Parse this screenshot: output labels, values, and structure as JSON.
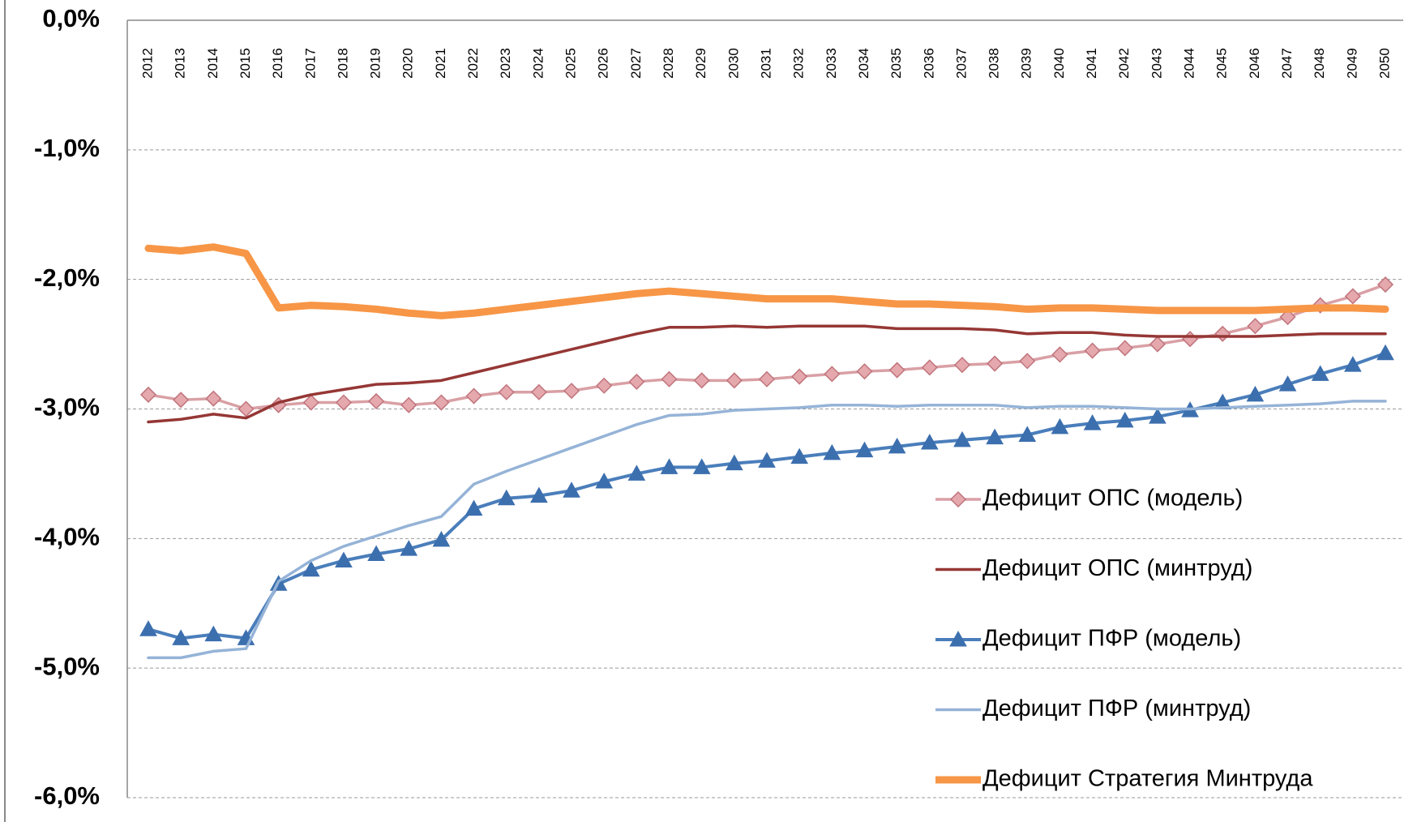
{
  "chart_data": {
    "type": "line",
    "categories": [
      "2012",
      "2013",
      "2014",
      "2015",
      "2016",
      "2017",
      "2018",
      "2019",
      "2020",
      "2021",
      "2022",
      "2023",
      "2024",
      "2025",
      "2026",
      "2027",
      "2028",
      "2029",
      "2030",
      "2031",
      "2032",
      "2033",
      "2034",
      "2035",
      "2036",
      "2037",
      "2038",
      "2039",
      "2040",
      "2041",
      "2042",
      "2043",
      "2044",
      "2045",
      "2046",
      "2047",
      "2048",
      "2049",
      "2050"
    ],
    "ylim": [
      -6,
      0
    ],
    "yticks": [
      {
        "value": 0,
        "label": "0,0%"
      },
      {
        "value": -1,
        "label": "-1,0%"
      },
      {
        "value": -2,
        "label": "-2,0%"
      },
      {
        "value": -3,
        "label": "-3,0%"
      },
      {
        "value": -4,
        "label": "-4,0%"
      },
      {
        "value": -5,
        "label": "-5,0%"
      },
      {
        "value": -6,
        "label": "-6,0%"
      }
    ],
    "grid": true,
    "legend_position": "lower right",
    "series": [
      {
        "name": "Дефицит ОПС (модель)",
        "color": "#d9a0a5",
        "marker": "diamond",
        "marker_color": "#c0747c",
        "values": [
          -2.89,
          -2.93,
          -2.92,
          -3.0,
          -2.97,
          -2.95,
          -2.95,
          -2.94,
          -2.97,
          -2.95,
          -2.9,
          -2.87,
          -2.87,
          -2.86,
          -2.82,
          -2.79,
          -2.77,
          -2.78,
          -2.78,
          -2.77,
          -2.75,
          -2.73,
          -2.71,
          -2.7,
          -2.68,
          -2.66,
          -2.65,
          -2.63,
          -2.58,
          -2.55,
          -2.53,
          -2.5,
          -2.46,
          -2.42,
          -2.36,
          -2.29,
          -2.2,
          -2.13,
          -2.04
        ]
      },
      {
        "name": "Дефицит ОПС (минтруд)",
        "color": "#953735",
        "marker": "none",
        "values": [
          -3.1,
          -3.08,
          -3.04,
          -3.07,
          -2.95,
          -2.89,
          -2.85,
          -2.81,
          -2.8,
          -2.78,
          -2.72,
          -2.66,
          -2.6,
          -2.54,
          -2.48,
          -2.42,
          -2.37,
          -2.37,
          -2.36,
          -2.37,
          -2.36,
          -2.36,
          -2.36,
          -2.38,
          -2.38,
          -2.38,
          -2.39,
          -2.42,
          -2.41,
          -2.41,
          -2.43,
          -2.44,
          -2.44,
          -2.44,
          -2.44,
          -2.43,
          -2.42,
          -2.42,
          -2.42
        ]
      },
      {
        "name": "Дефицит ПФР (модель)",
        "color": "#4a7ebb",
        "marker": "triangle",
        "marker_color": "#3c6fae",
        "values": [
          -4.7,
          -4.77,
          -4.74,
          -4.77,
          -4.35,
          -4.24,
          -4.17,
          -4.12,
          -4.08,
          -4.01,
          -3.77,
          -3.69,
          -3.67,
          -3.63,
          -3.56,
          -3.5,
          -3.45,
          -3.45,
          -3.42,
          -3.4,
          -3.37,
          -3.34,
          -3.32,
          -3.29,
          -3.26,
          -3.24,
          -3.22,
          -3.2,
          -3.14,
          -3.11,
          -3.09,
          -3.06,
          -3.01,
          -2.95,
          -2.89,
          -2.81,
          -2.73,
          -2.66,
          -2.57
        ]
      },
      {
        "name": "Дефицит ПФР (минтруд)",
        "color": "#95b3d7",
        "marker": "none",
        "values": [
          -4.92,
          -4.92,
          -4.87,
          -4.85,
          -4.33,
          -4.17,
          -4.06,
          -3.98,
          -3.9,
          -3.83,
          -3.58,
          -3.48,
          -3.39,
          -3.3,
          -3.21,
          -3.12,
          -3.05,
          -3.04,
          -3.01,
          -3.0,
          -2.99,
          -2.97,
          -2.97,
          -2.98,
          -2.97,
          -2.97,
          -2.97,
          -2.99,
          -2.98,
          -2.98,
          -2.99,
          -3.0,
          -3.0,
          -2.99,
          -2.98,
          -2.97,
          -2.96,
          -2.94,
          -2.94
        ]
      },
      {
        "name": "Дефицит Стратегия Минтруда",
        "color": "#f79646",
        "marker": "none",
        "values": [
          -1.76,
          -1.78,
          -1.75,
          -1.8,
          -2.22,
          -2.2,
          -2.21,
          -2.23,
          -2.26,
          -2.28,
          -2.26,
          -2.23,
          -2.2,
          -2.17,
          -2.14,
          -2.11,
          -2.09,
          -2.11,
          -2.13,
          -2.15,
          -2.15,
          -2.15,
          -2.17,
          -2.19,
          -2.19,
          -2.2,
          -2.21,
          -2.23,
          -2.22,
          -2.22,
          -2.23,
          -2.24,
          -2.24,
          -2.24,
          -2.24,
          -2.23,
          -2.22,
          -2.22,
          -2.23
        ]
      }
    ]
  }
}
